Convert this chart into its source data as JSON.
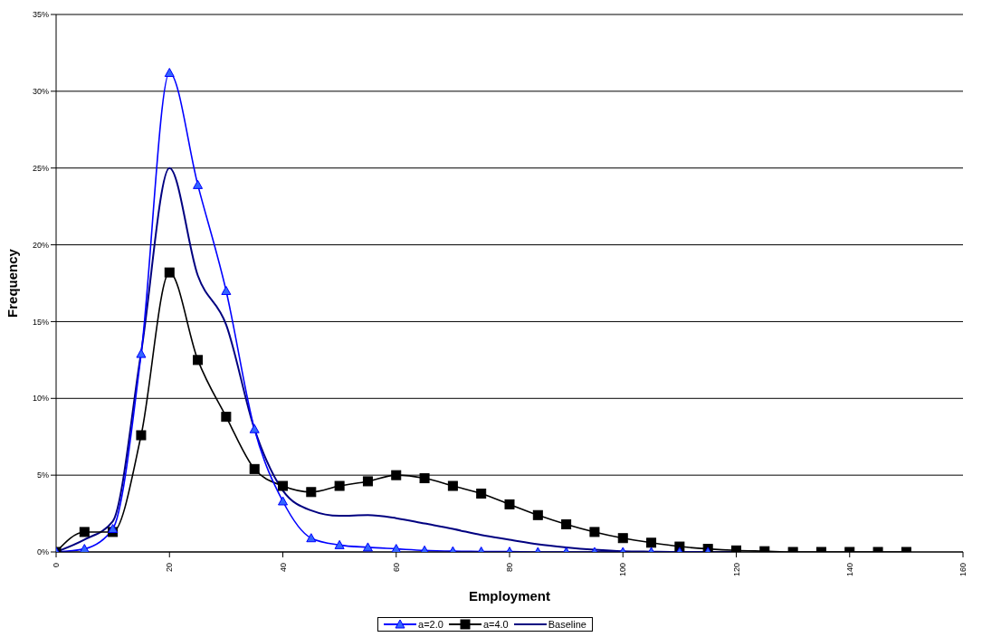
{
  "chart_data": {
    "type": "line",
    "xlabel": "Employment",
    "ylabel": "Frequency",
    "xlim": [
      0,
      160
    ],
    "xticks": [
      0,
      20,
      40,
      60,
      80,
      100,
      120,
      140,
      160
    ],
    "ylim": [
      0,
      35
    ],
    "yticks": [
      {
        "value": 0,
        "label": "0%"
      },
      {
        "value": 5,
        "label": "5%"
      },
      {
        "value": 10,
        "label": "10%"
      },
      {
        "value": 15,
        "label": "15%"
      },
      {
        "value": 20,
        "label": "20%"
      },
      {
        "value": 25,
        "label": "25%"
      },
      {
        "value": 30,
        "label": "30%"
      },
      {
        "value": 35,
        "label": "35%"
      }
    ],
    "grid": "y",
    "legend": "bottom",
    "line_style": "solid",
    "series": [
      {
        "name": "a=2.0",
        "color": "#0000ff",
        "marker": "triangle",
        "x": [
          0,
          5,
          10,
          15,
          20,
          25,
          30,
          35,
          40,
          45,
          50,
          55,
          60,
          65,
          70,
          75,
          80,
          85,
          90,
          95,
          100,
          105,
          110,
          115
        ],
        "values": [
          0,
          0.2,
          1.5,
          12.9,
          31.2,
          23.9,
          17.0,
          8.0,
          3.3,
          0.9,
          0.45,
          0.3,
          0.2,
          0.1,
          0.05,
          0.03,
          0.02,
          0,
          0,
          0,
          0,
          0,
          0,
          0
        ]
      },
      {
        "name": "a=4.0",
        "color": "#000000",
        "marker": "square",
        "x": [
          0,
          5,
          10,
          15,
          20,
          25,
          30,
          35,
          40,
          45,
          50,
          55,
          60,
          65,
          70,
          75,
          80,
          85,
          90,
          95,
          100,
          105,
          110,
          115,
          120,
          125,
          130,
          135,
          140,
          145,
          150
        ],
        "values": [
          0,
          1.3,
          1.3,
          7.6,
          18.2,
          12.5,
          8.8,
          5.4,
          4.3,
          3.9,
          4.3,
          4.6,
          5.0,
          4.8,
          4.3,
          3.8,
          3.1,
          2.4,
          1.8,
          1.3,
          0.9,
          0.6,
          0.35,
          0.2,
          0.1,
          0.05,
          0,
          0,
          0,
          0,
          0
        ]
      },
      {
        "name": "Baseline",
        "color": "#000080",
        "marker": "none",
        "x": [
          0,
          5,
          10,
          15,
          20,
          25,
          30,
          35,
          40,
          45,
          50,
          55,
          60,
          65,
          70,
          75,
          80,
          85,
          90,
          95,
          100,
          105,
          110,
          115,
          120
        ],
        "values": [
          0,
          0.8,
          2.0,
          13.0,
          25.0,
          18.0,
          14.8,
          8.0,
          4.0,
          2.7,
          2.35,
          2.4,
          2.2,
          1.85,
          1.5,
          1.1,
          0.8,
          0.5,
          0.3,
          0.15,
          0.05,
          0.02,
          0,
          0,
          0
        ]
      }
    ]
  }
}
